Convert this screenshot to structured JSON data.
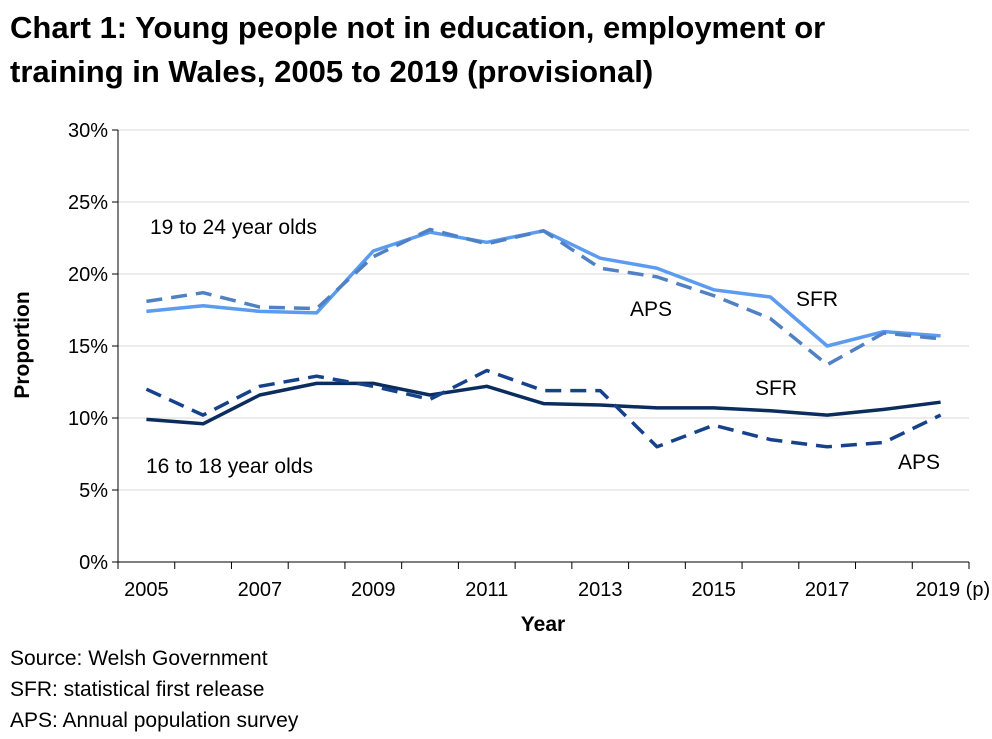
{
  "title_lines": [
    "Chart 1: Young people not in education, employment or",
    "training in Wales, 2005 to 2019 (provisional)"
  ],
  "notes": [
    "Source: Welsh Government",
    "SFR: statistical first release",
    "APS: Annual population survey"
  ],
  "chart_data": {
    "type": "line",
    "xlabel": "Year",
    "ylabel": "Proportion",
    "ylim": [
      0,
      30
    ],
    "yticks": [
      "0%",
      "5%",
      "10%",
      "15%",
      "20%",
      "25%",
      "30%"
    ],
    "xticks": [
      "2005",
      "2007",
      "2009",
      "2011",
      "2013",
      "2015",
      "2017",
      "2019 (p)"
    ],
    "x": [
      2005,
      2006,
      2007,
      2008,
      2009,
      2010,
      2011,
      2012,
      2013,
      2014,
      2015,
      2016,
      2017,
      2018,
      2019
    ],
    "grid": true,
    "series": [
      {
        "name": "SFR",
        "group": "19 to 24 year olds",
        "color": "#5B9BF0",
        "dash": false,
        "values": [
          17.4,
          17.8,
          17.4,
          17.3,
          21.6,
          22.9,
          22.2,
          23.0,
          21.1,
          20.4,
          18.9,
          18.4,
          15.0,
          16.0,
          15.7
        ]
      },
      {
        "name": "APS",
        "group": "19 to 24 year olds",
        "color": "#4F81C4",
        "dash": true,
        "values": [
          18.1,
          18.7,
          17.7,
          17.6,
          21.2,
          23.1,
          22.1,
          23.0,
          20.4,
          19.8,
          18.5,
          16.9,
          13.7,
          15.9,
          15.5
        ]
      },
      {
        "name": "SFR",
        "group": "16 to 18 year olds",
        "color": "#0B2D5E",
        "dash": false,
        "values": [
          9.9,
          9.6,
          11.6,
          12.4,
          12.4,
          11.6,
          12.2,
          11.0,
          10.9,
          10.7,
          10.7,
          10.5,
          10.2,
          10.6,
          11.1
        ]
      },
      {
        "name": "APS",
        "group": "16 to 18 year olds",
        "color": "#16428C",
        "dash": true,
        "values": [
          12.0,
          10.2,
          12.2,
          12.9,
          12.2,
          11.3,
          13.3,
          11.9,
          11.9,
          8.0,
          9.5,
          8.5,
          8.0,
          8.3,
          10.2
        ]
      }
    ],
    "annotations": {
      "group_upper": "19 to 24 year olds",
      "group_lower": "16 to 18 year olds",
      "upper_aps": "APS",
      "upper_sfr": "SFR",
      "lower_sfr": "SFR",
      "lower_aps": "APS"
    }
  }
}
